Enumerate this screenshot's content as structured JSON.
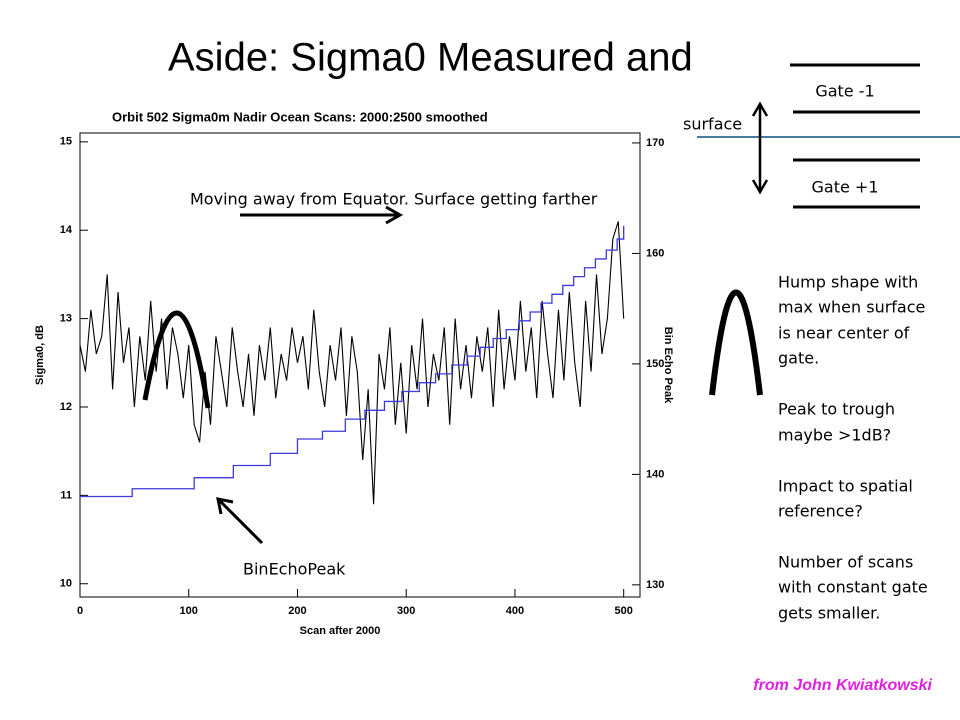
{
  "slide": {
    "title": "Aside: Sigma0 Measured and",
    "gate_minus": "Gate -1",
    "gate_plus": "Gate +1",
    "surface": "surface",
    "notes": [
      "Hump shape with",
      "max when surface",
      "is near center of",
      "gate.",
      "Peak to trough",
      "maybe >1dB?",
      "Impact to spatial",
      "reference?",
      "Number of scans",
      "with constant gate",
      "gets smaller."
    ],
    "credit": "from John Kwiatkowski"
  },
  "chart_data": {
    "type": "line",
    "title": "Orbit 502 Sigma0m Nadir Ocean Scans: 2000:2500 smoothed",
    "xlabel": "Scan after 2000",
    "ylabel": "Sigma0, dB",
    "y2label": "Bin Echo Peak",
    "annotations": [
      "Moving away from Equator. Surface getting farther",
      "BinEchoPeak"
    ],
    "xlim": [
      0,
      515
    ],
    "xticks": [
      0,
      100,
      200,
      300,
      400,
      500
    ],
    "ylim": [
      9.85,
      15.1
    ],
    "yticks": [
      10,
      11,
      12,
      13,
      14,
      15
    ],
    "y2lim": [
      128.9,
      170.9
    ],
    "y2ticks": [
      130,
      140,
      150,
      160,
      170
    ],
    "series": [
      {
        "color": "#000000",
        "axis": "y",
        "x": [
          0,
          5,
          10,
          15,
          20,
          25,
          30,
          35,
          40,
          45,
          50,
          55,
          60,
          65,
          70,
          75,
          80,
          85,
          90,
          95,
          100,
          105,
          110,
          115,
          120,
          125,
          130,
          135,
          140,
          145,
          150,
          155,
          160,
          165,
          170,
          175,
          180,
          185,
          190,
          195,
          200,
          205,
          210,
          215,
          220,
          225,
          230,
          235,
          240,
          245,
          250,
          255,
          260,
          265,
          270,
          275,
          280,
          285,
          290,
          295,
          300,
          305,
          310,
          315,
          320,
          325,
          330,
          335,
          340,
          345,
          350,
          355,
          360,
          365,
          370,
          375,
          380,
          385,
          390,
          395,
          400,
          405,
          410,
          415,
          420,
          425,
          430,
          435,
          440,
          445,
          450,
          455,
          460,
          465,
          470,
          475,
          480,
          485,
          490,
          495,
          500
        ],
        "values": [
          12.7,
          12.4,
          13.1,
          12.6,
          12.8,
          13.5,
          12.2,
          13.3,
          12.5,
          12.9,
          12.0,
          12.8,
          12.3,
          13.2,
          12.4,
          13.0,
          12.2,
          12.9,
          12.6,
          12.1,
          12.7,
          11.8,
          11.6,
          12.4,
          11.8,
          12.8,
          12.4,
          12.0,
          12.9,
          12.4,
          12.0,
          12.6,
          11.9,
          12.7,
          12.3,
          12.9,
          12.1,
          12.6,
          12.3,
          12.9,
          12.5,
          12.8,
          12.2,
          13.1,
          12.4,
          12.0,
          12.7,
          12.3,
          12.9,
          11.9,
          12.8,
          12.4,
          11.4,
          12.2,
          10.9,
          12.6,
          12.2,
          12.9,
          11.8,
          12.5,
          11.7,
          12.7,
          12.2,
          13.0,
          12.0,
          12.6,
          12.3,
          12.9,
          11.8,
          13.0,
          12.2,
          12.7,
          12.1,
          12.8,
          12.4,
          12.9,
          12.0,
          13.1,
          12.2,
          12.8,
          12.3,
          13.2,
          12.4,
          12.9,
          12.1,
          13.2,
          12.6,
          12.1,
          13.1,
          12.3,
          13.3,
          12.5,
          12.0,
          13.2,
          12.4,
          13.5,
          12.6,
          13.0,
          13.9,
          14.1,
          13.0
        ]
      },
      {
        "color": "#3a3ae0",
        "axis": "y2",
        "step": "post",
        "x": [
          0,
          48,
          105,
          141,
          175,
          200,
          223,
          244,
          262,
          280,
          296,
          312,
          327,
          342,
          356,
          368,
          380,
          392,
          404,
          414,
          424,
          434,
          444,
          454,
          464,
          474,
          484,
          494,
          500
        ],
        "values": [
          138,
          138.7,
          139.7,
          140.8,
          141.9,
          143.2,
          143.9,
          145,
          145.8,
          146.6,
          147.5,
          148.3,
          149.1,
          149.9,
          150.7,
          151.5,
          152.3,
          153.1,
          153.9,
          154.7,
          155.5,
          156.3,
          157.1,
          157.9,
          158.7,
          159.5,
          160.3,
          161.3,
          162.5
        ]
      }
    ]
  }
}
